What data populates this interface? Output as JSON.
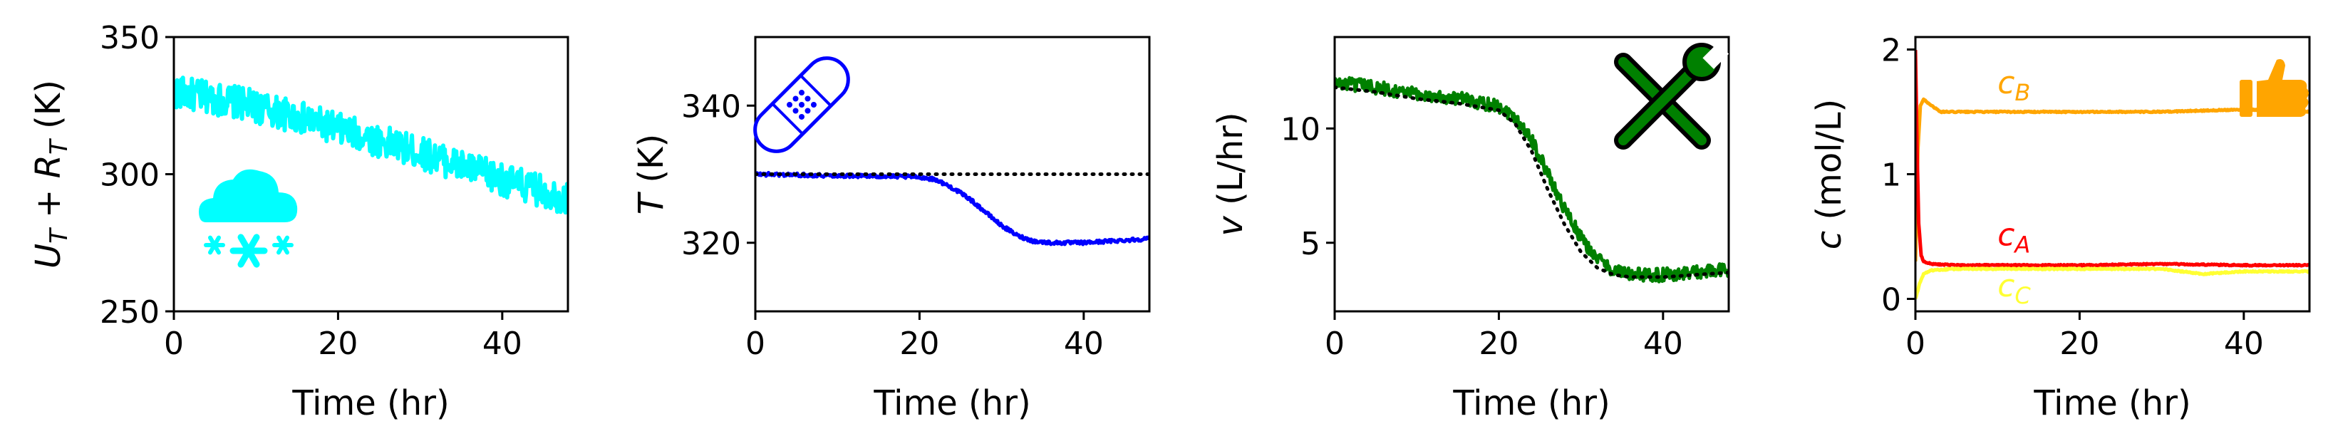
{
  "chart_data": [
    {
      "type": "line",
      "title": "",
      "xlabel": "Time (hr)",
      "ylabel": "U_T + R_T (K)",
      "ylabel_parts": {
        "a": "U",
        "a_sub": "T",
        "op": " + ",
        "b": "R",
        "b_sub": "T",
        "unit": " (K)"
      },
      "xlim": [
        0,
        48
      ],
      "ylim": [
        250,
        350
      ],
      "xticks": [
        "0",
        "20",
        "40"
      ],
      "yticks": [
        "250",
        "300",
        "350"
      ],
      "grid": false,
      "icon": "snow-cloud-icon",
      "series": [
        {
          "color": "#00ffff",
          "style": "solid",
          "noise": 6,
          "x": [
            0,
            8,
            16,
            24,
            32,
            40,
            48
          ],
          "y": [
            330,
            326,
            320,
            313,
            306,
            298,
            291
          ]
        }
      ]
    },
    {
      "type": "line",
      "title": "",
      "xlabel": "Time (hr)",
      "ylabel": "T (K)",
      "ylabel_parts": {
        "a": "T",
        "unit": " (K)"
      },
      "xlim": [
        0,
        48
      ],
      "ylim": [
        310,
        350
      ],
      "xticks": [
        "0",
        "20",
        "40"
      ],
      "yticks": [
        "320",
        "340"
      ],
      "grid": false,
      "icon": "bandage-icon",
      "series": [
        {
          "color": "#0000ff",
          "style": "solid",
          "noise": 0.25,
          "x": [
            0,
            10,
            20,
            22,
            24,
            26,
            28,
            30,
            32,
            34,
            36,
            40,
            44,
            48
          ],
          "y": [
            330,
            329.8,
            329.6,
            329.2,
            328,
            326.5,
            324.5,
            322.5,
            321,
            320.2,
            320,
            320,
            320.3,
            320.6
          ]
        },
        {
          "color": "#000000",
          "style": "dotted",
          "noise": 0,
          "x": [
            0,
            48
          ],
          "y": [
            330,
            330
          ]
        }
      ]
    },
    {
      "type": "line",
      "title": "",
      "xlabel": "Time (hr)",
      "ylabel": "v (L/hr)",
      "ylabel_parts": {
        "a": "v",
        "unit": " (L/hr)"
      },
      "xlim": [
        0,
        48
      ],
      "ylim": [
        2,
        14
      ],
      "xticks": [
        "0",
        "20",
        "40"
      ],
      "yticks": [
        "5",
        "10"
      ],
      "grid": false,
      "icon": "tools-icon",
      "series": [
        {
          "color": "#008000",
          "style": "solid",
          "noise": 0.3,
          "x": [
            0,
            5,
            10,
            15,
            20,
            22,
            24,
            26,
            28,
            30,
            32,
            34,
            36,
            40,
            44,
            48
          ],
          "y": [
            12,
            11.8,
            11.5,
            11.3,
            11,
            10.5,
            9.5,
            8,
            6.5,
            5.2,
            4.3,
            3.8,
            3.6,
            3.6,
            3.7,
            3.8
          ]
        },
        {
          "color": "#000000",
          "style": "dotted",
          "noise": 0,
          "x": [
            0,
            5,
            10,
            15,
            20,
            22,
            24,
            26,
            28,
            30,
            32,
            34,
            36,
            40,
            44,
            48
          ],
          "y": [
            11.8,
            11.6,
            11.3,
            11.1,
            10.8,
            10.2,
            9,
            7.3,
            5.8,
            4.6,
            3.9,
            3.6,
            3.5,
            3.5,
            3.6,
            3.7
          ]
        }
      ]
    },
    {
      "type": "line",
      "title": "",
      "xlabel": "Time (hr)",
      "ylabel": "c (mol/L)",
      "ylabel_parts": {
        "a": "c",
        "unit": " (mol/L)"
      },
      "xlim": [
        0,
        48
      ],
      "ylim": [
        -0.1,
        2.1
      ],
      "xticks": [
        "0",
        "20",
        "40"
      ],
      "yticks": [
        "0",
        "1",
        "2"
      ],
      "grid": false,
      "icon": "thumbs-up-icon",
      "series": [
        {
          "name": "c_B",
          "name_parts": {
            "a": "c",
            "sub": "B"
          },
          "label_at": [
            10,
            1.65
          ],
          "color": "#ffa500",
          "style": "solid",
          "noise": 0.005,
          "x": [
            0,
            0.3,
            0.6,
            1,
            2,
            3,
            5,
            10,
            20,
            30,
            40,
            48
          ],
          "y": [
            0.3,
            1.2,
            1.55,
            1.6,
            1.55,
            1.5,
            1.5,
            1.5,
            1.5,
            1.5,
            1.52,
            1.5
          ]
        },
        {
          "name": "c_A",
          "name_parts": {
            "a": "c",
            "sub": "A"
          },
          "label_at": [
            10,
            0.43
          ],
          "color": "#ff0000",
          "style": "solid",
          "noise": 0.005,
          "x": [
            0,
            0.2,
            0.4,
            0.7,
            1,
            2,
            5,
            10,
            20,
            30,
            40,
            48
          ],
          "y": [
            2.0,
            1.2,
            0.6,
            0.35,
            0.3,
            0.28,
            0.27,
            0.27,
            0.27,
            0.28,
            0.27,
            0.27
          ]
        },
        {
          "name": "c_C",
          "name_parts": {
            "a": "c",
            "sub": "C"
          },
          "label_at": [
            10,
            0.02
          ],
          "color": "#ffff33",
          "style": "solid",
          "noise": 0.005,
          "x": [
            0,
            0.5,
            1,
            2,
            5,
            10,
            20,
            30,
            35,
            40,
            48
          ],
          "y": [
            0.0,
            0.12,
            0.2,
            0.23,
            0.24,
            0.24,
            0.24,
            0.24,
            0.2,
            0.22,
            0.22
          ]
        }
      ]
    }
  ]
}
